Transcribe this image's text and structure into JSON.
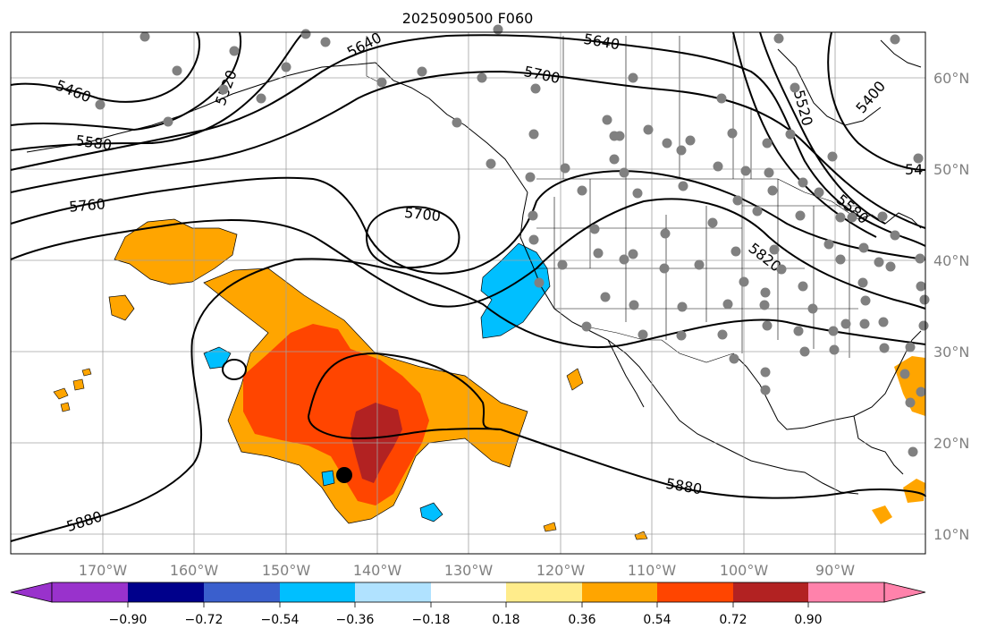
{
  "title": "2025090500 F060",
  "map": {
    "x_tick_labels": [
      "170°W",
      "160°W",
      "150°W",
      "140°W",
      "130°W",
      "120°W",
      "110°W",
      "100°W",
      "90°W"
    ],
    "y_tick_labels": [
      "60°N",
      "50°N",
      "40°N",
      "30°N",
      "20°N",
      "10°N"
    ],
    "contour_labels": [
      "5460",
      "5520",
      "5640",
      "5700",
      "5640",
      "5580",
      "5760",
      "5700",
      "5820",
      "5880",
      "5880",
      "5520",
      "5400",
      "54",
      "5580"
    ],
    "colors": {
      "ocean_bg": "#ffffff",
      "coast": "#000000",
      "grid": "#a0a0a0",
      "station_dot": "#808080",
      "anomaly_orange": "#ffa500",
      "anomaly_red_orange": "#ff4500",
      "anomaly_dark_red": "#b22222",
      "anomaly_blue": "#00bfff"
    }
  },
  "colorbar": {
    "tick_labels": [
      "−0.90",
      "−0.72",
      "−0.54",
      "−0.36",
      "−0.18",
      "0.18",
      "0.36",
      "0.54",
      "0.72",
      "0.90"
    ],
    "colors": [
      "#9932cc",
      "#00008b",
      "#3a5fcd",
      "#00bfff",
      "#b0e2ff",
      "#ffffff",
      "#ffec8b",
      "#ffa500",
      "#ff4500",
      "#b22222",
      "#ff82ab"
    ]
  }
}
